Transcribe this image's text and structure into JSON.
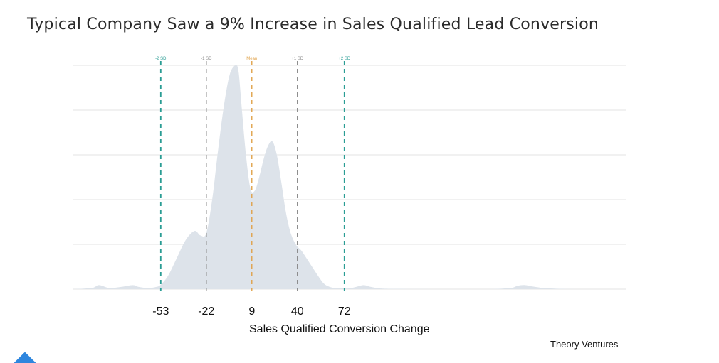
{
  "header": {
    "title": "Typical Company Saw a 9% Increase in Sales Qualified Lead Conversion"
  },
  "footer": {
    "source": "Theory Ventures"
  },
  "colors": {
    "area_fill": "#dde3ea",
    "grid": "#e3e3e3",
    "sd2_line": "#2a9d94",
    "sd1_line": "#8a8a8a",
    "mean_line": "#e0a24a",
    "axis_text": "#111111"
  },
  "chart_data": {
    "type": "area",
    "title": "Typical Company Saw a 9% Increase in Sales Qualified Lead Conversion",
    "xlabel": "Sales Qualified Conversion Change",
    "ylabel": "",
    "grid": true,
    "xticks": [
      -53,
      -22,
      9,
      40,
      72
    ],
    "xlim": [
      -113,
      264
    ],
    "ylim": [
      0,
      1
    ],
    "reference_lines": [
      {
        "label": "-2 SD",
        "x": -53,
        "style": "sd2"
      },
      {
        "label": "-1 SD",
        "x": -22,
        "style": "sd1"
      },
      {
        "label": "Mean",
        "x": 9,
        "style": "mean"
      },
      {
        "label": "+1 SD",
        "x": 40,
        "style": "sd1"
      },
      {
        "label": "+2 SD",
        "x": 72,
        "style": "sd2"
      }
    ],
    "series": [
      {
        "x": [
          -113,
          -100,
          -95,
          -88,
          -80,
          -72,
          -68,
          -62,
          -56,
          -53,
          -48,
          -42,
          -36,
          -30,
          -26,
          -22,
          -18,
          -14,
          -10,
          -6,
          -2,
          0,
          2,
          5,
          8,
          11,
          14,
          17,
          20,
          23,
          26,
          29,
          32,
          35,
          38,
          40,
          43,
          46,
          50,
          54,
          58,
          62,
          66,
          70,
          75,
          80,
          85,
          90,
          95,
          100,
          110,
          130,
          150,
          170,
          185,
          190,
          195,
          200,
          210,
          230,
          264
        ],
        "y": [
          0.0,
          0.005,
          0.018,
          0.005,
          0.01,
          0.018,
          0.01,
          0.005,
          0.01,
          0.02,
          0.06,
          0.14,
          0.22,
          0.26,
          0.24,
          0.25,
          0.4,
          0.62,
          0.82,
          0.96,
          1.0,
          0.97,
          0.82,
          0.6,
          0.45,
          0.44,
          0.5,
          0.58,
          0.64,
          0.66,
          0.6,
          0.48,
          0.35,
          0.26,
          0.21,
          0.19,
          0.17,
          0.14,
          0.1,
          0.06,
          0.025,
          0.01,
          0.005,
          0.004,
          0.003,
          0.01,
          0.018,
          0.01,
          0.004,
          0.002,
          0.001,
          0.0,
          0.0,
          0.0,
          0.005,
          0.015,
          0.018,
          0.012,
          0.004,
          0.0,
          0.0
        ]
      }
    ]
  }
}
